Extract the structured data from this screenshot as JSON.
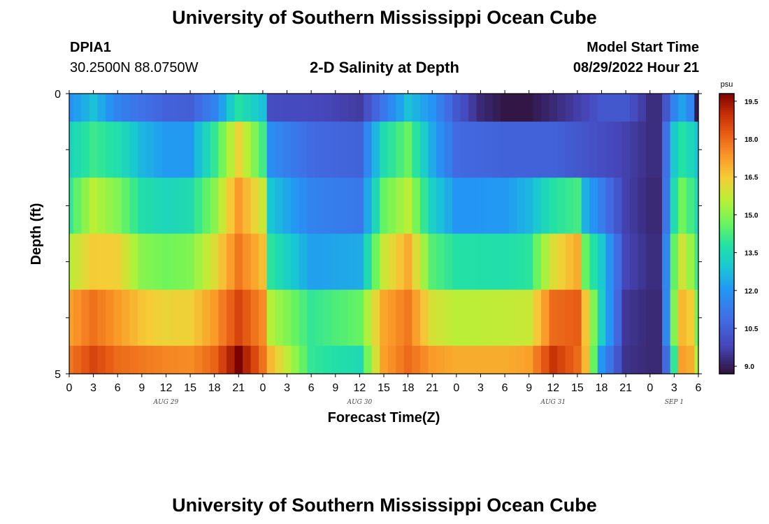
{
  "header": {
    "title": "University of Southern Mississippi Ocean Cube",
    "station": "DPIA1",
    "coords": "30.2500N  88.0750W",
    "plot_title": "2-D Salinity at Depth",
    "model_start_label": "Model Start Time",
    "model_start_value": "08/29/2022 Hour 21"
  },
  "footer": {
    "title": "University of Southern Mississippi Ocean Cube"
  },
  "chart_data": {
    "type": "heatmap",
    "title": "2-D Salinity at Depth",
    "xlabel": "Forecast Time(Z)",
    "ylabel": "Depth (ft)",
    "colorbar_unit": "psu",
    "colorbar_ticks": [
      "19.5",
      "18.0",
      "16.5",
      "15.0",
      "13.5",
      "12.0",
      "10.5",
      "9.0"
    ],
    "colorbar_range": [
      8.7,
      19.8
    ],
    "y_ticks": [
      "0",
      "5"
    ],
    "ylim": [
      0,
      5
    ],
    "x_tick_labels": [
      "0",
      "3",
      "6",
      "9",
      "12",
      "15",
      "18",
      "21",
      "0",
      "3",
      "6",
      "9",
      "12",
      "15",
      "18",
      "21",
      "0",
      "3",
      "6",
      "9",
      "12",
      "15",
      "18",
      "21",
      "0",
      "3",
      "6"
    ],
    "date_labels": [
      "AUG 29",
      "AUG 30",
      "AUG 31",
      "SEP 1"
    ],
    "x_hours_start": 0,
    "x_hours_end": 78,
    "depth_levels": [
      0,
      1,
      2,
      3,
      4,
      5
    ],
    "row_keyframes": [
      [
        [
          0,
          11.9
        ],
        [
          3,
          12.8
        ],
        [
          6,
          11.5
        ],
        [
          9,
          11.0
        ],
        [
          12,
          10.6
        ],
        [
          15,
          10.5
        ],
        [
          18,
          11.5
        ],
        [
          21,
          13.8
        ],
        [
          24,
          12.8
        ],
        [
          25,
          10.0
        ],
        [
          30,
          9.9
        ],
        [
          36,
          9.6
        ],
        [
          39,
          11.2
        ],
        [
          42,
          12.8
        ],
        [
          45,
          12.0
        ],
        [
          48,
          10.3
        ],
        [
          51,
          9.2
        ],
        [
          54,
          8.8
        ],
        [
          57,
          8.8
        ],
        [
          60,
          9.2
        ],
        [
          64,
          9.8
        ],
        [
          66,
          10.3
        ],
        [
          69,
          10.3
        ],
        [
          72,
          9.3
        ],
        [
          73.5,
          9.3
        ],
        [
          74.5,
          11.2
        ],
        [
          76,
          12.2
        ],
        [
          77,
          11.6
        ],
        [
          78,
          8.9
        ]
      ],
      [
        [
          0,
          13.3
        ],
        [
          3,
          14.1
        ],
        [
          6,
          13.7
        ],
        [
          9,
          12.6
        ],
        [
          12,
          12.1
        ],
        [
          15,
          12.1
        ],
        [
          18,
          14.0
        ],
        [
          21,
          16.3
        ],
        [
          24,
          14.2
        ],
        [
          25,
          11.8
        ],
        [
          30,
          10.8
        ],
        [
          36,
          10.6
        ],
        [
          39,
          13.6
        ],
        [
          42,
          14.6
        ],
        [
          45,
          12.4
        ],
        [
          48,
          10.8
        ],
        [
          54,
          10.6
        ],
        [
          60,
          10.6
        ],
        [
          64,
          10.2
        ],
        [
          69,
          9.7
        ],
        [
          72,
          9.3
        ],
        [
          73.5,
          9.3
        ],
        [
          74.5,
          12.6
        ],
        [
          76,
          13.8
        ],
        [
          77,
          13.4
        ],
        [
          78,
          12.9
        ]
      ],
      [
        [
          0,
          14.0
        ],
        [
          3,
          15.6
        ],
        [
          6,
          14.9
        ],
        [
          9,
          13.7
        ],
        [
          12,
          13.4
        ],
        [
          15,
          13.6
        ],
        [
          18,
          15.0
        ],
        [
          21,
          17.3
        ],
        [
          24,
          15.8
        ],
        [
          25,
          12.9
        ],
        [
          30,
          11.5
        ],
        [
          36,
          11.2
        ],
        [
          39,
          14.6
        ],
        [
          42,
          15.6
        ],
        [
          45,
          13.2
        ],
        [
          48,
          12.0
        ],
        [
          54,
          12.1
        ],
        [
          57,
          12.6
        ],
        [
          60,
          13.8
        ],
        [
          63,
          14.2
        ],
        [
          64,
          12.5
        ],
        [
          69,
          9.7
        ],
        [
          72,
          9.2
        ],
        [
          73.5,
          9.2
        ],
        [
          74.5,
          13.1
        ],
        [
          76,
          14.7
        ],
        [
          77,
          14.2
        ],
        [
          78,
          13.6
        ]
      ],
      [
        [
          0,
          15.6
        ],
        [
          3,
          16.5
        ],
        [
          6,
          16.4
        ],
        [
          9,
          15.0
        ],
        [
          12,
          14.7
        ],
        [
          15,
          14.9
        ],
        [
          18,
          16.1
        ],
        [
          21,
          17.8
        ],
        [
          24,
          16.7
        ],
        [
          25,
          13.9
        ],
        [
          30,
          12.2
        ],
        [
          36,
          12.4
        ],
        [
          39,
          15.8
        ],
        [
          42,
          17.0
        ],
        [
          45,
          14.4
        ],
        [
          48,
          13.8
        ],
        [
          54,
          13.7
        ],
        [
          57,
          13.9
        ],
        [
          60,
          16.1
        ],
        [
          63,
          17.0
        ],
        [
          64,
          14.6
        ],
        [
          66,
          13.0
        ],
        [
          69,
          9.8
        ],
        [
          72,
          9.3
        ],
        [
          73.5,
          9.3
        ],
        [
          74.5,
          13.9
        ],
        [
          76,
          15.9
        ],
        [
          77,
          15.2
        ],
        [
          78,
          14.2
        ]
      ],
      [
        [
          0,
          17.2
        ],
        [
          3,
          17.9
        ],
        [
          6,
          17.3
        ],
        [
          9,
          16.6
        ],
        [
          12,
          16.3
        ],
        [
          15,
          16.4
        ],
        [
          18,
          17.3
        ],
        [
          21,
          18.6
        ],
        [
          24,
          17.5
        ],
        [
          25,
          15.5
        ],
        [
          30,
          14.0
        ],
        [
          36,
          14.6
        ],
        [
          39,
          17.1
        ],
        [
          42,
          17.8
        ],
        [
          45,
          16.0
        ],
        [
          48,
          15.6
        ],
        [
          54,
          15.7
        ],
        [
          57,
          15.8
        ],
        [
          60,
          18.0
        ],
        [
          63,
          18.2
        ],
        [
          64,
          16.6
        ],
        [
          66,
          13.2
        ],
        [
          69,
          9.5
        ],
        [
          72,
          9.2
        ],
        [
          73.5,
          9.2
        ],
        [
          74.5,
          14.0
        ],
        [
          76,
          16.8
        ],
        [
          77,
          16.5
        ],
        [
          78,
          14.8
        ]
      ],
      [
        [
          0,
          17.8
        ],
        [
          3,
          18.6
        ],
        [
          6,
          18.0
        ],
        [
          9,
          17.8
        ],
        [
          12,
          17.6
        ],
        [
          15,
          17.5
        ],
        [
          18,
          18.1
        ],
        [
          21,
          19.8
        ],
        [
          24,
          17.9
        ],
        [
          25,
          16.8
        ],
        [
          30,
          14.0
        ],
        [
          36,
          13.5
        ],
        [
          39,
          17.2
        ],
        [
          42,
          18.0
        ],
        [
          45,
          17.3
        ],
        [
          48,
          17.0
        ],
        [
          54,
          17.0
        ],
        [
          57,
          17.2
        ],
        [
          60,
          18.9
        ],
        [
          63,
          18.0
        ],
        [
          64,
          16.8
        ],
        [
          65,
          14.6
        ],
        [
          66,
          12.0
        ],
        [
          69,
          9.4
        ],
        [
          72,
          9.2
        ],
        [
          73.5,
          9.2
        ],
        [
          74.5,
          12.4
        ],
        [
          76,
          17.2
        ],
        [
          77,
          17.0
        ],
        [
          78,
          15.5
        ]
      ]
    ]
  }
}
